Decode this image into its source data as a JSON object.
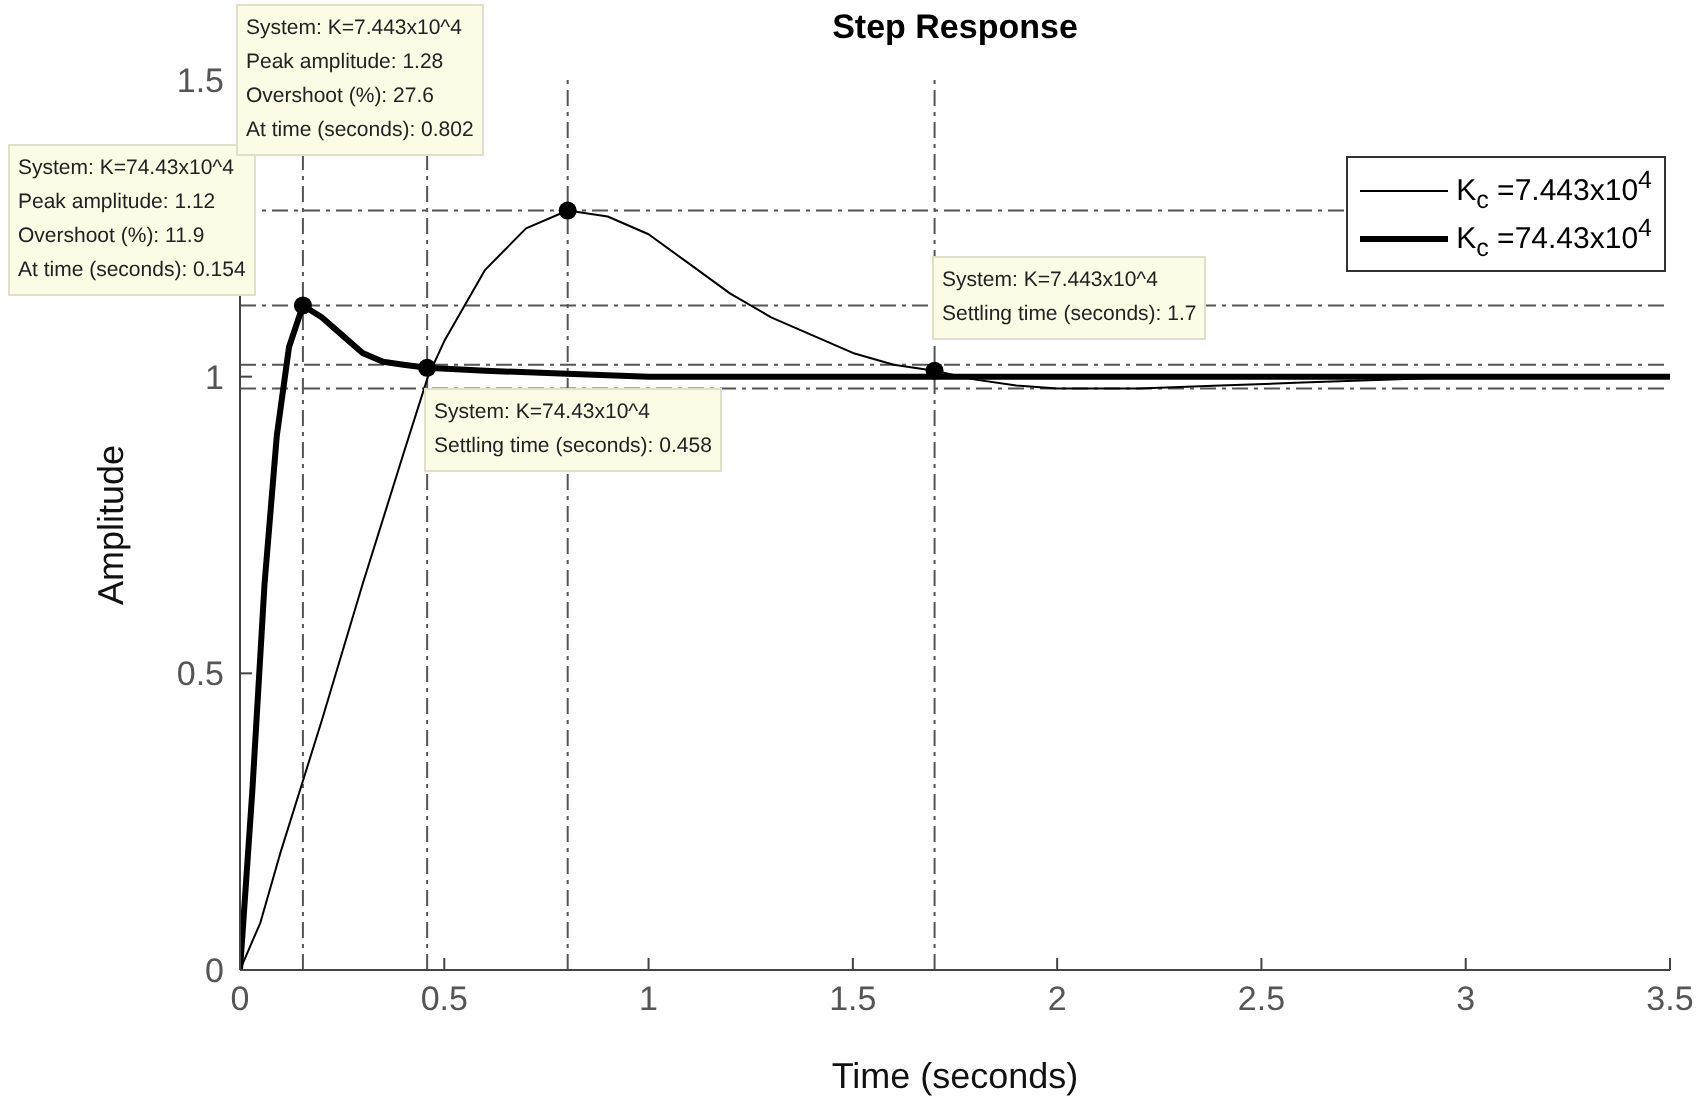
{
  "chart_data": {
    "type": "line",
    "title": "Step Response",
    "xlabel": "Time (seconds)",
    "ylabel": "Amplitude",
    "xlim": [
      0,
      3.5
    ],
    "xticks": [
      0,
      0.5,
      1,
      1.5,
      2,
      2.5,
      3,
      3.5
    ],
    "ylim": [
      0,
      1.5
    ],
    "yticks": [
      0,
      0.5,
      1,
      1.5
    ],
    "legend": "top right",
    "marker": "none",
    "series": [
      {
        "name": "K$_{c}$ =7.443x10$^{4}$",
        "color": "#000000",
        "x": [
          0,
          0.05,
          0.1,
          0.2,
          0.3,
          0.4,
          0.46,
          0.5,
          0.6,
          0.7,
          0.802,
          0.9,
          1.0,
          1.1,
          1.2,
          1.3,
          1.4,
          1.5,
          1.6,
          1.7,
          1.8,
          1.9,
          2.0,
          2.2,
          2.4,
          2.6,
          2.8,
          3.0,
          3.5
        ],
        "values": [
          0,
          0.08,
          0.2,
          0.42,
          0.65,
          0.87,
          1.0,
          1.06,
          1.18,
          1.25,
          1.28,
          1.27,
          1.24,
          1.19,
          1.14,
          1.1,
          1.07,
          1.04,
          1.02,
          1.01,
          0.995,
          0.985,
          0.98,
          0.98,
          0.985,
          0.99,
          0.995,
          1.0,
          1.0
        ]
      },
      {
        "name": "K$_{c}$ =74.43x10$^{4}$",
        "color": "#000000",
        "x": [
          0,
          0.03,
          0.06,
          0.09,
          0.12,
          0.154,
          0.2,
          0.25,
          0.3,
          0.35,
          0.4,
          0.458,
          0.6,
          0.8,
          1.0,
          3.5
        ],
        "values": [
          0,
          0.3,
          0.65,
          0.9,
          1.05,
          1.12,
          1.1,
          1.07,
          1.04,
          1.025,
          1.02,
          1.015,
          1.01,
          1.005,
          1.0,
          1.0
        ]
      },
      {
        "type": "scatter",
        "color": "#000000",
        "marker": "circle",
        "x": [
          0.154,
          0.458,
          0.802,
          1.7
        ],
        "values": [
          1.12,
          1.015,
          1.28,
          1.01
        ]
      }
    ],
    "ref_lines": [
      {
        "axis": "y",
        "value": 1.28,
        "line_style": "dashdot"
      },
      {
        "axis": "y",
        "value": 1.12,
        "line_style": "dashdot"
      },
      {
        "axis": "y",
        "value": 1.02,
        "line_style": "dashdot"
      },
      {
        "axis": "y",
        "value": 0.98,
        "line_style": "dashdot"
      },
      {
        "axis": "x",
        "value": 0.154,
        "line_style": "dashdot"
      },
      {
        "axis": "x",
        "value": 0.458,
        "line_style": "dashdot"
      },
      {
        "axis": "x",
        "value": 0.802,
        "line_style": "dashdot"
      },
      {
        "axis": "x",
        "value": 1.7,
        "line_style": "dashdot"
      }
    ],
    "annotations": [
      "System: K=74.43x10^4\nPeak amplitude: 1.12\nOvershoot (%): 11.9\nAt time (seconds): 0.154",
      "System: K=7.443x10^4\nPeak amplitude: 1.28\nOvershoot (%): 27.6\nAt time (seconds): 0.802",
      "System: K=74.43x10^4\nSettling time (seconds): 0.458",
      "System: K=7.443x10^4\nSettling time (seconds): 1.7"
    ]
  }
}
